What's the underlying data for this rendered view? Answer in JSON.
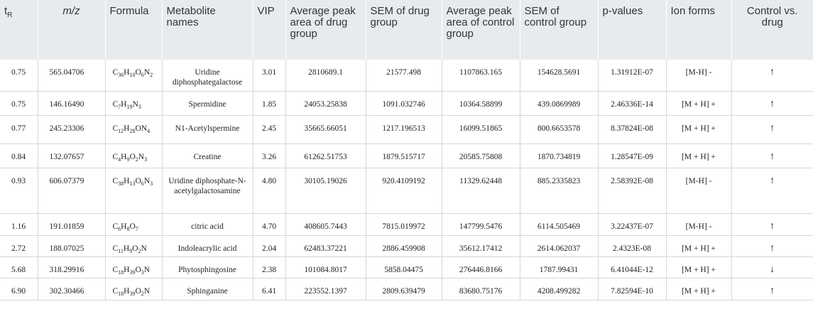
{
  "table": {
    "headers": {
      "tr_main": "t",
      "tr_sub": "R",
      "mz": "m/z",
      "formula": "Formula",
      "metabolite": "Metabolite names",
      "vip": "VIP",
      "avg_drug": "Average peak area of drug group",
      "sem_drug": "SEM of drug group",
      "avg_control": "Average peak area of control group",
      "sem_control": "SEM of control group",
      "pvalues": "p-values",
      "ion": "Ion forms",
      "direction": "Control vs. drug"
    },
    "rows": [
      {
        "tr": "0.75",
        "mz": "565.04706",
        "formula": [
          [
            "C",
            "36"
          ],
          [
            "H",
            "10"
          ],
          [
            "O",
            "6"
          ],
          [
            "N",
            "2"
          ]
        ],
        "name": "Uridine diphosphategalactose",
        "vip": "3.01",
        "avg_drug": "2810689.1",
        "sem_drug": "21577.498",
        "avg_control": "1107863.165",
        "sem_control": "154628.5691",
        "p": "1.31912E-07",
        "ion": "[M-H] -",
        "dir": "↑"
      },
      {
        "tr": "0.75",
        "mz": "146.16490",
        "formula": [
          [
            "C",
            "7"
          ],
          [
            "H",
            "19"
          ],
          [
            "N",
            "3"
          ]
        ],
        "name": "Spermidine",
        "vip": "1.85",
        "avg_drug": "24053.25838",
        "sem_drug": "1091.032746",
        "avg_control": "10364.58899",
        "sem_control": "439.0869989",
        "p": "2.46336E-14",
        "ion": "[M + H] +",
        "dir": "↑"
      },
      {
        "tr": "0.77",
        "mz": "245.23306",
        "formula": [
          [
            "C",
            "12"
          ],
          [
            "H",
            "28"
          ],
          [
            "O",
            ""
          ],
          [
            "N",
            "4"
          ]
        ],
        "name": "N1-Acetylspermine",
        "vip": "2.45",
        "avg_drug": "35665.66051",
        "sem_drug": "1217.196513",
        "avg_control": "16099.51865",
        "sem_control": "800.6653578",
        "p": "8.37824E-08",
        "ion": "[M + H] +",
        "dir": "↑"
      },
      {
        "tr": "0.84",
        "mz": "132.07657",
        "formula": [
          [
            "C",
            "4"
          ],
          [
            "H",
            "9"
          ],
          [
            "O",
            "2"
          ],
          [
            "N",
            "3"
          ]
        ],
        "name": "Creatine",
        "vip": "3.26",
        "avg_drug": "61262.51753",
        "sem_drug": "1879.515717",
        "avg_control": "20585.75808",
        "sem_control": "1870.734819",
        "p": "1.28547E-09",
        "ion": "[M + H] +",
        "dir": "↑"
      },
      {
        "tr": "0.93",
        "mz": "606.07379",
        "formula": [
          [
            "C",
            "38"
          ],
          [
            "H",
            "13"
          ],
          [
            "O",
            "6"
          ],
          [
            "N",
            "3"
          ]
        ],
        "name": "Uridine diphosphate-N-acetylgalactosamine",
        "vip": "4.80",
        "avg_drug": "30105.19026",
        "sem_drug": "920.4109192",
        "avg_control": "11329.62448",
        "sem_control": "885.2335823",
        "p": "2.58392E-08",
        "ion": "[M-H] -",
        "dir": "↑"
      },
      {
        "tr": "1.16",
        "mz": "191.01859",
        "formula": [
          [
            "C",
            "6"
          ],
          [
            "H",
            "8"
          ],
          [
            "O",
            "7"
          ]
        ],
        "name": "citric acid",
        "vip": "4.70",
        "avg_drug": "408605.7443",
        "sem_drug": "7815.019972",
        "avg_control": "147799.5476",
        "sem_control": "6114.505469",
        "p": "3.22437E-07",
        "ion": "[M-H] -",
        "dir": "↑"
      },
      {
        "tr": "2.72",
        "mz": "188.07025",
        "formula": [
          [
            "C",
            "11"
          ],
          [
            "H",
            "9"
          ],
          [
            "O",
            "2"
          ],
          [
            "N",
            ""
          ]
        ],
        "name": "Indoleacrylic acid",
        "vip": "2.04",
        "avg_drug": "62483.37221",
        "sem_drug": "2886.459908",
        "avg_control": "35612.17412",
        "sem_control": "2614.062037",
        "p": "2.4323E-08",
        "ion": "[M + H] +",
        "dir": "↑"
      },
      {
        "tr": "5.68",
        "mz": "318.29916",
        "formula": [
          [
            "C",
            "18"
          ],
          [
            "H",
            "39"
          ],
          [
            "O",
            "3"
          ],
          [
            "N",
            ""
          ]
        ],
        "name": "Phytosphingosine",
        "vip": "2.38",
        "avg_drug": "101084.8017",
        "sem_drug": "5858.04475",
        "avg_control": "276446.8166",
        "sem_control": "1787.99431",
        "p": "6.41044E-12",
        "ion": "[M + H] +",
        "dir": "↓"
      },
      {
        "tr": "6.90",
        "mz": "302.30466",
        "formula": [
          [
            "C",
            "18"
          ],
          [
            "H",
            "39"
          ],
          [
            "O",
            "2"
          ],
          [
            "N",
            ""
          ]
        ],
        "name": "Sphinganine",
        "vip": "6.41",
        "avg_drug": "223552.1397",
        "sem_drug": "2809.639479",
        "avg_control": "83680.75176",
        "sem_control": "4208.499282",
        "p": "7.82594E-10",
        "ion": "[M + H] +",
        "dir": "↑"
      }
    ]
  },
  "colors": {
    "header_bg": "#e8ebee",
    "grid": "#d6d6d6",
    "text": "#222222"
  }
}
